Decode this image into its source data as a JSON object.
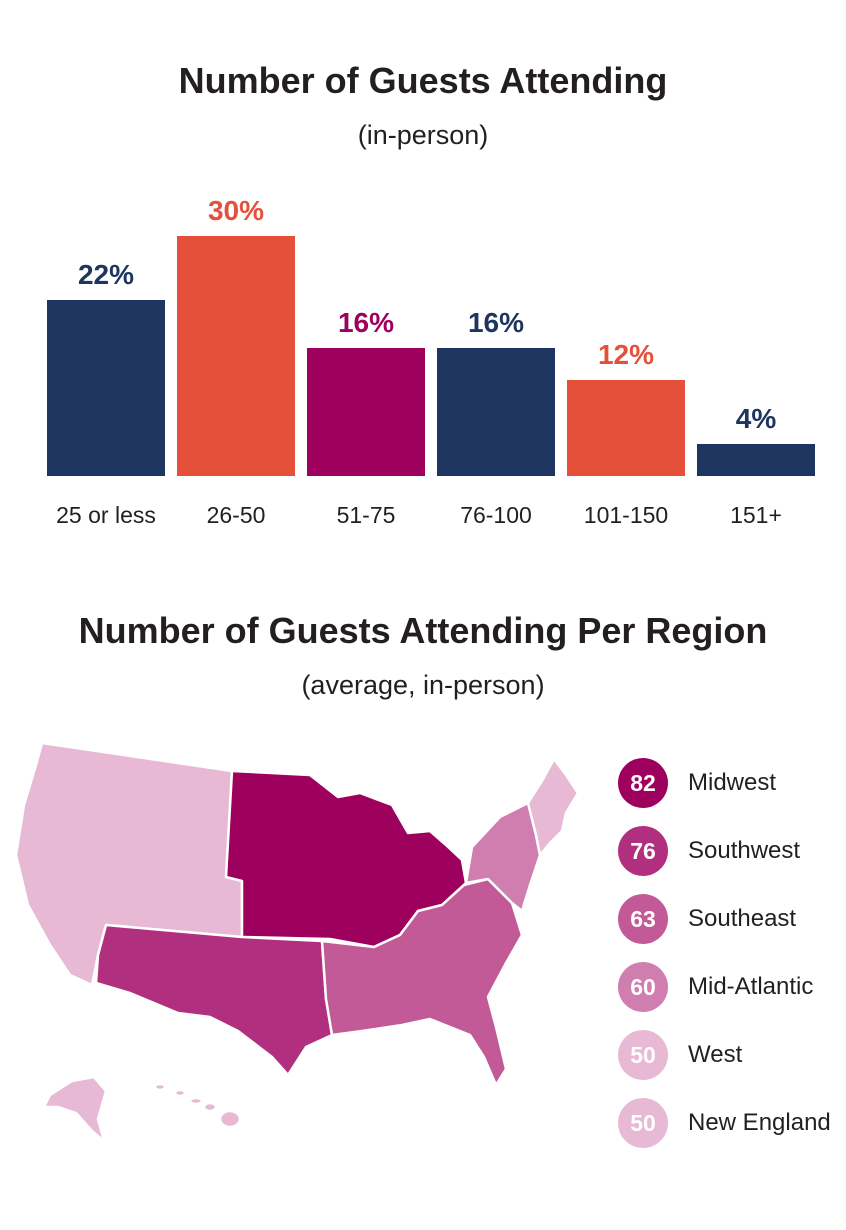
{
  "chart_data": [
    {
      "type": "bar",
      "title": "Number of Guests Attending",
      "subtitle": "(in-person)",
      "categories": [
        "25 or less",
        "26-50",
        "51-75",
        "76-100",
        "101-150",
        "151+"
      ],
      "values": [
        22,
        30,
        16,
        16,
        12,
        4
      ],
      "value_labels": [
        "22%",
        "30%",
        "16%",
        "16%",
        "12%",
        "4%"
      ],
      "colors": [
        "#1e3560",
        "#e4503a",
        "#9e005d",
        "#1e3560",
        "#e4503a",
        "#1e3560"
      ],
      "unit": "%",
      "ylim": [
        0,
        30
      ],
      "grid": false
    },
    {
      "type": "map",
      "title": "Number of Guests Attending Per Region",
      "subtitle": "(average, in-person)",
      "regions": [
        {
          "name": "Midwest",
          "value": "82",
          "color": "#9e005d"
        },
        {
          "name": "Southwest",
          "value": "76",
          "color": "#b0307f"
        },
        {
          "name": "Southeast",
          "value": "63",
          "color": "#c25a98"
        },
        {
          "name": "Mid-Atlantic",
          "value": "60",
          "color": "#d07eb0"
        },
        {
          "name": "West",
          "value": "50",
          "color": "#e7b9d4"
        },
        {
          "name": "New England",
          "value": "50",
          "color": "#e7b9d4"
        }
      ]
    }
  ]
}
